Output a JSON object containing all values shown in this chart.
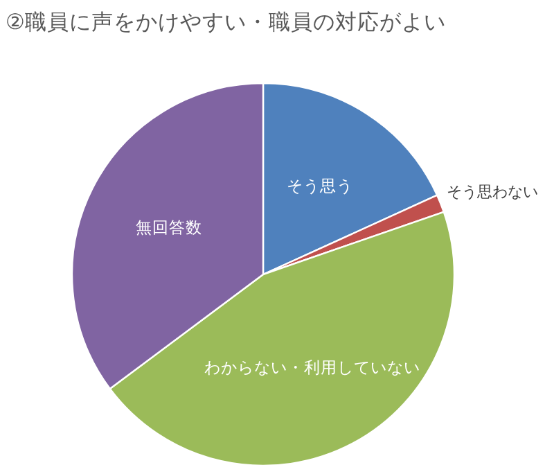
{
  "chart_data": {
    "type": "pie",
    "title": "②職員に声をかけやすい・職員の対応がよい",
    "categories": [
      "そう思う",
      "そう思わない",
      "わからない・利用していない",
      "無回答数"
    ],
    "values": [
      18.2,
      1.5,
      45.1,
      35.2
    ],
    "colors": [
      "#4f81bd",
      "#c0504d",
      "#9bbb59",
      "#8064a2"
    ]
  }
}
